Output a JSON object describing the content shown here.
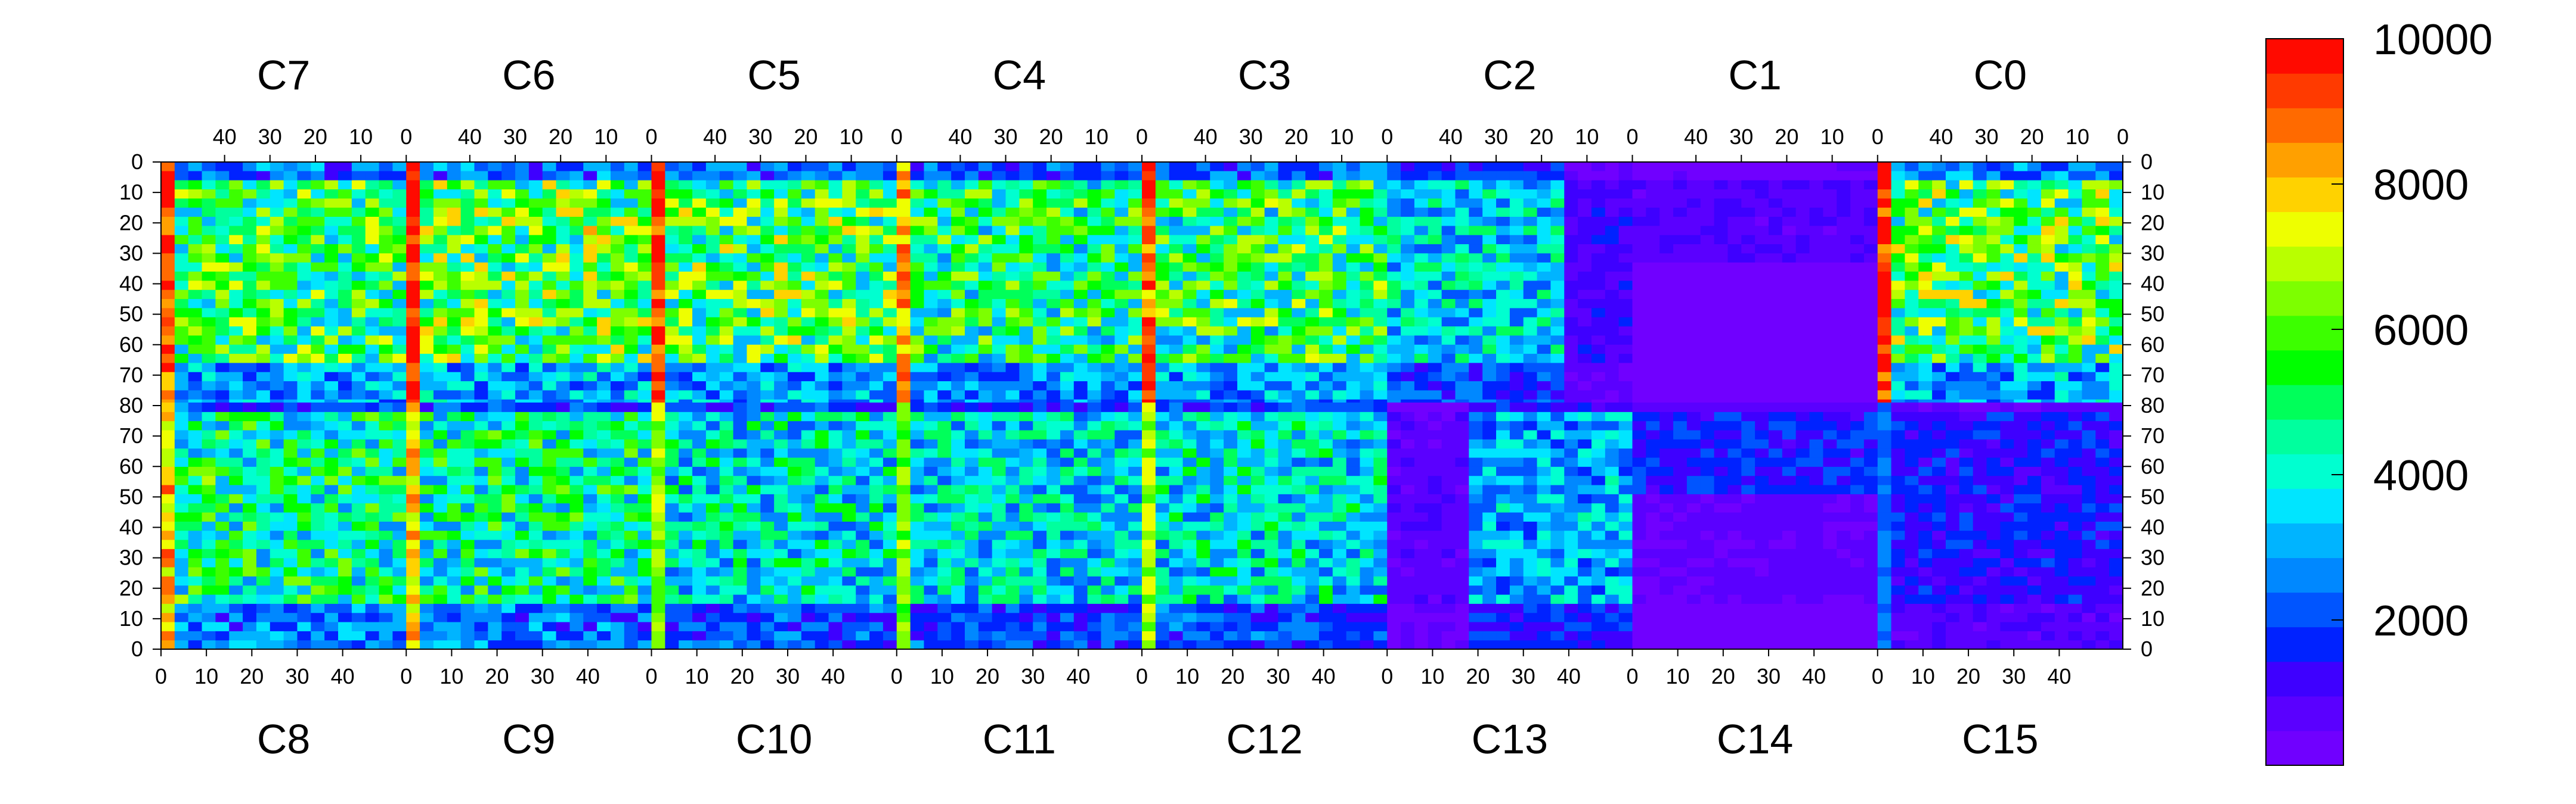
{
  "chart_data": {
    "type": "heatmap",
    "title": "",
    "xlabel": "",
    "ylabel": "",
    "chips_top": [
      "C7",
      "C6",
      "C5",
      "C4",
      "C3",
      "C2",
      "C1",
      "C0"
    ],
    "chips_bottom": [
      "C8",
      "C9",
      "C10",
      "C11",
      "C12",
      "C13",
      "C14",
      "C15"
    ],
    "chip_columns": 54,
    "rows_per_half": 80,
    "top_x_ticks": [
      "40",
      "30",
      "20",
      "10",
      "0"
    ],
    "bottom_x_ticks": [
      "0",
      "10",
      "20",
      "30",
      "40"
    ],
    "y_ticks_top_half": [
      "0",
      "10",
      "20",
      "30",
      "40",
      "50",
      "60",
      "70",
      "80"
    ],
    "y_ticks_bottom_half": [
      "70",
      "60",
      "50",
      "40",
      "30",
      "20",
      "10",
      "0"
    ],
    "zlim": [
      0,
      10000
    ],
    "colorbar": {
      "tick_values": [
        2000,
        4000,
        6000,
        8000,
        10000
      ],
      "tick_labels": [
        "2000",
        "4000",
        "6000",
        "8000",
        "10000"
      ],
      "colors": [
        "#7000ff",
        "#5a00ff",
        "#3e00ff",
        "#0022ff",
        "#0055ff",
        "#0088ff",
        "#00b4ff",
        "#00e5ff",
        "#00ffd0",
        "#00ff9e",
        "#00ff5a",
        "#00ff00",
        "#3cff00",
        "#7dff00",
        "#b9ff00",
        "#eeff00",
        "#ffd200",
        "#ffa000",
        "#ff6a00",
        "#ff3a00",
        "#ff0a00"
      ]
    },
    "chip_mean_levels_top_half": {
      "C7": 5200,
      "C6": 5600,
      "C5": 5400,
      "C4": 4800,
      "C3": 5000,
      "C2": 3500,
      "C1": 800,
      "C0": 5500
    },
    "chip_mean_levels_bottom_half": {
      "C8": 4600,
      "C9": 4400,
      "C10": 3800,
      "C11": 3600,
      "C12": 3800,
      "C13": 3000,
      "C14": 1600,
      "C15": 1400
    },
    "hot_columns_note": "high-occupancy columns at chip boundaries"
  }
}
